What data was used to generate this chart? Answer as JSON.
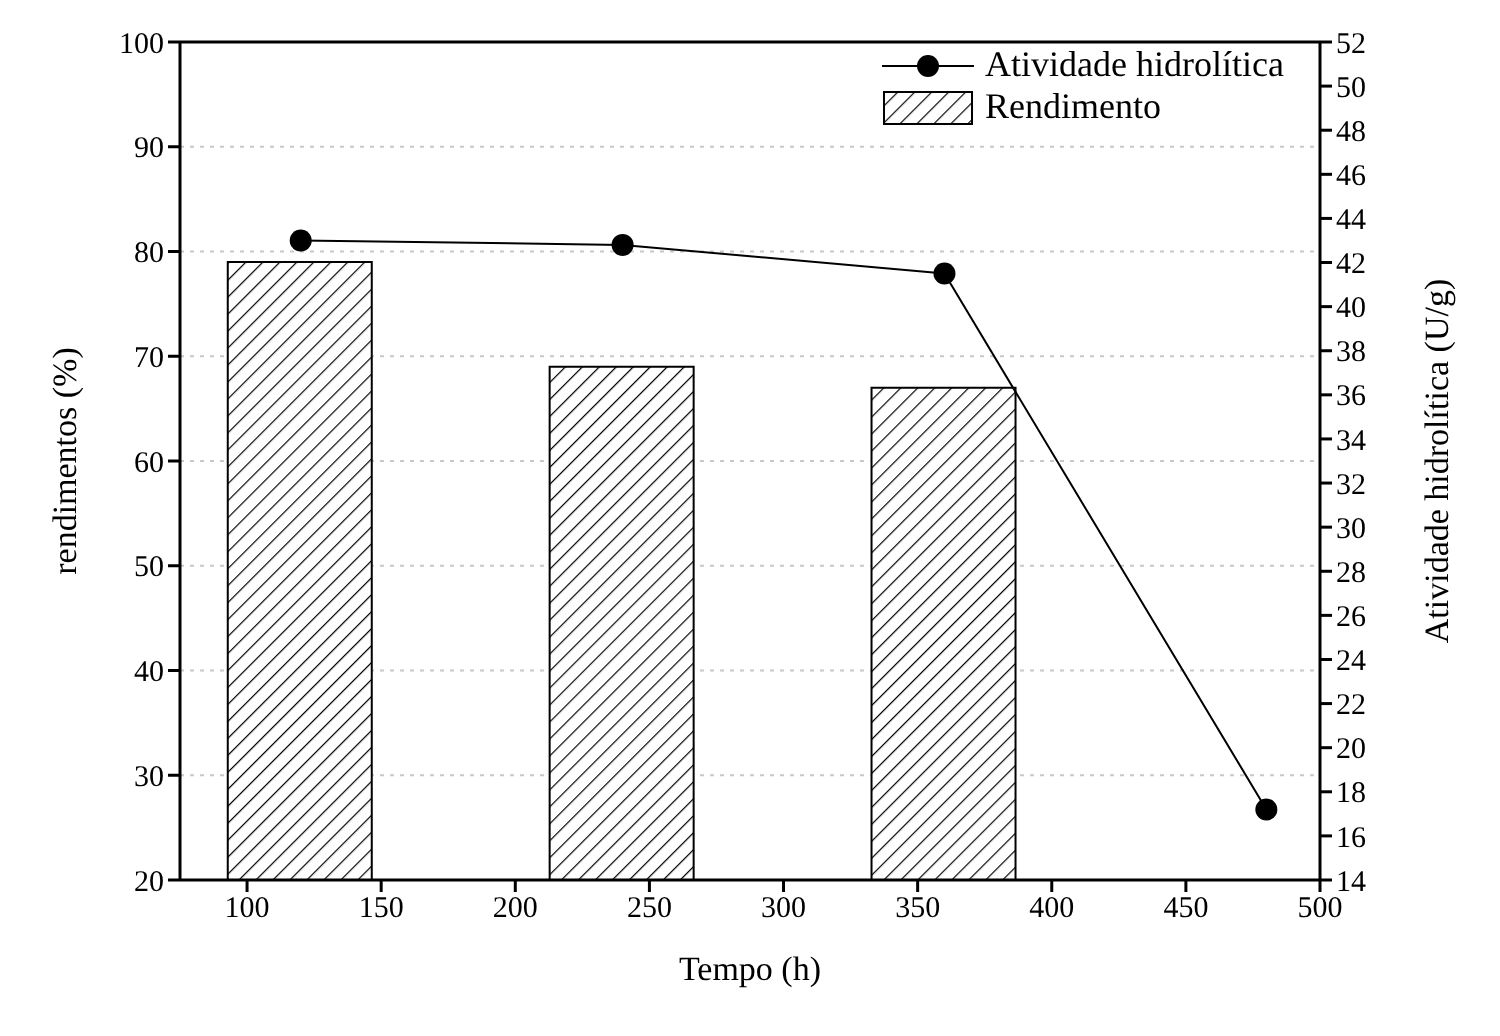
{
  "chart_data": {
    "type": "bar",
    "xlabel": "Tempo (h)",
    "ylabel": "rendimentos (%)",
    "y2label": "Atividade hidrolítica (U/g)",
    "xlim": [
      75,
      500
    ],
    "xticks": [
      100,
      150,
      200,
      250,
      300,
      350,
      400,
      450,
      500
    ],
    "ylim": [
      20,
      100
    ],
    "yticks": [
      20,
      30,
      40,
      50,
      60,
      70,
      80,
      90,
      100
    ],
    "y2lim": [
      14,
      52
    ],
    "y2ticks": [
      14,
      16,
      18,
      20,
      22,
      24,
      26,
      28,
      30,
      32,
      34,
      36,
      38,
      40,
      42,
      44,
      46,
      48,
      50,
      52
    ],
    "grid": "y",
    "legend": "top right",
    "series": [
      {
        "name": "Atividade hidrolítica",
        "type": "line",
        "axis": "y2",
        "color": "#000000",
        "marker": "circle",
        "x": [
          120,
          240,
          360,
          480
        ],
        "values": [
          43.0,
          42.8,
          41.5,
          17.2
        ]
      },
      {
        "name": "Rendimento",
        "color": "#000000",
        "x": [
          120,
          240,
          360
        ],
        "values": [
          79,
          69,
          67
        ]
      }
    ]
  }
}
